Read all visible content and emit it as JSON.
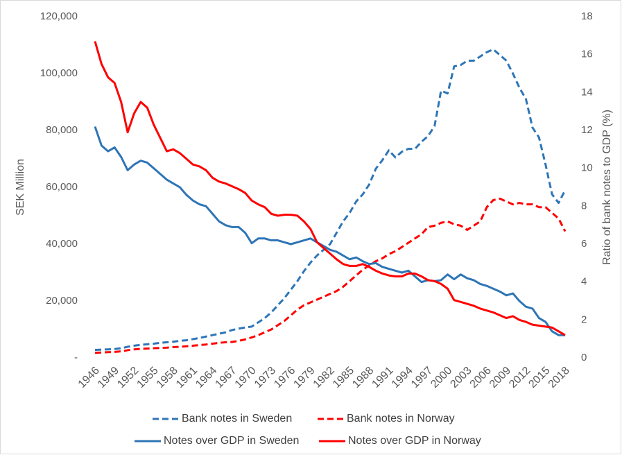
{
  "chart_data": {
    "type": "line",
    "y_label": "SEK Million",
    "y2_label": "Ratio of bank notes to GDP (%)",
    "x": [
      1946,
      1947,
      1948,
      1949,
      1950,
      1951,
      1952,
      1953,
      1954,
      1955,
      1956,
      1957,
      1958,
      1959,
      1960,
      1961,
      1962,
      1963,
      1964,
      1965,
      1966,
      1967,
      1968,
      1969,
      1970,
      1971,
      1972,
      1973,
      1974,
      1975,
      1976,
      1977,
      1978,
      1979,
      1980,
      1981,
      1982,
      1983,
      1984,
      1985,
      1986,
      1987,
      1988,
      1989,
      1990,
      1991,
      1992,
      1993,
      1994,
      1995,
      1996,
      1997,
      1998,
      1999,
      2000,
      2001,
      2002,
      2003,
      2004,
      2005,
      2006,
      2007,
      2008,
      2009,
      2010,
      2011,
      2012,
      2013,
      2014,
      2015,
      2016,
      2017,
      2018
    ],
    "xlim": [
      1946,
      2018
    ],
    "xticks": [
      1946,
      1949,
      1952,
      1955,
      1958,
      1961,
      1964,
      1967,
      1970,
      1973,
      1976,
      1979,
      1982,
      1985,
      1988,
      1991,
      1994,
      1997,
      2000,
      2003,
      2006,
      2009,
      2012,
      2015,
      2018
    ],
    "ylim": [
      0,
      120000
    ],
    "yticks": [
      {
        "value": 0,
        "label": "-"
      },
      {
        "value": 20000,
        "label": "20,000"
      },
      {
        "value": 40000,
        "label": "40,000"
      },
      {
        "value": 60000,
        "label": "60,000"
      },
      {
        "value": 80000,
        "label": "80,000"
      },
      {
        "value": 100000,
        "label": "100,000"
      },
      {
        "value": 120000,
        "label": "120,000"
      }
    ],
    "y2lim": [
      0,
      18
    ],
    "y2ticks": [
      0,
      2,
      4,
      6,
      8,
      10,
      12,
      14,
      16,
      18
    ],
    "grid": false,
    "legend": "bottom",
    "series": [
      {
        "name": "Bank notes in Sweden",
        "color": "#2e75b6",
        "dash": true,
        "values": [
          2800,
          2900,
          3000,
          3100,
          3400,
          3900,
          4300,
          4600,
          4800,
          5000,
          5300,
          5500,
          5700,
          6000,
          6200,
          6600,
          7000,
          7500,
          8000,
          8500,
          9000,
          9800,
          10300,
          10700,
          11000,
          12500,
          14000,
          16000,
          18500,
          21000,
          24000,
          27000,
          30500,
          33500,
          36000,
          38000,
          40000,
          44000,
          48000,
          51000,
          55000,
          57500,
          61000,
          66500,
          69500,
          73000,
          70500,
          72500,
          73500,
          73500,
          76000,
          78000,
          81500,
          94000,
          93000,
          102500,
          103000,
          104500,
          104500,
          106000,
          107500,
          108500,
          106500,
          104500,
          100000,
          95000,
          91000,
          81000,
          77500,
          68000,
          57500,
          54500,
          59000
        ]
      },
      {
        "name": "Bank notes in Norway",
        "color": "#ff0000",
        "dash": true,
        "values": [
          1800,
          1900,
          2000,
          2100,
          2300,
          2700,
          3000,
          3200,
          3300,
          3400,
          3500,
          3600,
          3800,
          3900,
          4100,
          4300,
          4500,
          4700,
          5000,
          5300,
          5500,
          5600,
          6000,
          6500,
          7200,
          8000,
          9000,
          10000,
          11500,
          13000,
          15000,
          17000,
          18500,
          19500,
          20500,
          21500,
          22500,
          23500,
          25000,
          27000,
          29000,
          31000,
          32500,
          34000,
          35000,
          36500,
          37500,
          39000,
          40500,
          42000,
          43500,
          46000,
          46500,
          47500,
          48000,
          47000,
          46500,
          45000,
          46500,
          48000,
          53000,
          55500,
          56000,
          55000,
          54000,
          54500,
          54000,
          54000,
          53000,
          53000,
          51000,
          49000,
          44500
        ]
      },
      {
        "name": "Notes over GDP in Sweden",
        "color": "#2e75b6",
        "dash": false,
        "axis": "y2",
        "values": [
          12.2,
          11.2,
          10.9,
          11.1,
          10.6,
          9.9,
          10.2,
          10.4,
          10.3,
          10.0,
          9.7,
          9.4,
          9.2,
          9.0,
          8.6,
          8.3,
          8.1,
          8.0,
          7.6,
          7.2,
          7.0,
          6.9,
          6.9,
          6.6,
          6.05,
          6.3,
          6.3,
          6.2,
          6.2,
          6.1,
          6.0,
          6.1,
          6.2,
          6.3,
          6.1,
          5.9,
          5.7,
          5.6,
          5.4,
          5.2,
          5.3,
          5.1,
          4.95,
          5.0,
          4.8,
          4.7,
          4.6,
          4.5,
          4.6,
          4.3,
          4.0,
          4.1,
          4.05,
          4.1,
          4.4,
          4.15,
          4.4,
          4.2,
          4.1,
          3.9,
          3.8,
          3.65,
          3.5,
          3.3,
          3.4,
          3.0,
          2.7,
          2.6,
          2.1,
          1.9,
          1.4,
          1.2,
          1.2
        ]
      },
      {
        "name": "Notes over GDP in Norway",
        "color": "#ff0000",
        "dash": false,
        "axis": "y2",
        "values": [
          16.7,
          15.5,
          14.8,
          14.5,
          13.5,
          11.9,
          12.9,
          13.5,
          13.2,
          12.3,
          11.6,
          10.9,
          11.0,
          10.8,
          10.5,
          10.2,
          10.1,
          9.9,
          9.5,
          9.3,
          9.2,
          9.05,
          8.9,
          8.7,
          8.3,
          8.1,
          7.95,
          7.6,
          7.5,
          7.55,
          7.55,
          7.5,
          7.2,
          6.8,
          6.1,
          5.8,
          5.5,
          5.2,
          4.95,
          4.85,
          4.85,
          4.95,
          4.8,
          4.6,
          4.45,
          4.35,
          4.3,
          4.3,
          4.45,
          4.45,
          4.3,
          4.1,
          4.05,
          3.9,
          3.65,
          3.05,
          2.95,
          2.85,
          2.75,
          2.6,
          2.5,
          2.4,
          2.25,
          2.1,
          2.2,
          2.0,
          1.9,
          1.75,
          1.7,
          1.65,
          1.6,
          1.4,
          1.2
        ]
      }
    ]
  }
}
